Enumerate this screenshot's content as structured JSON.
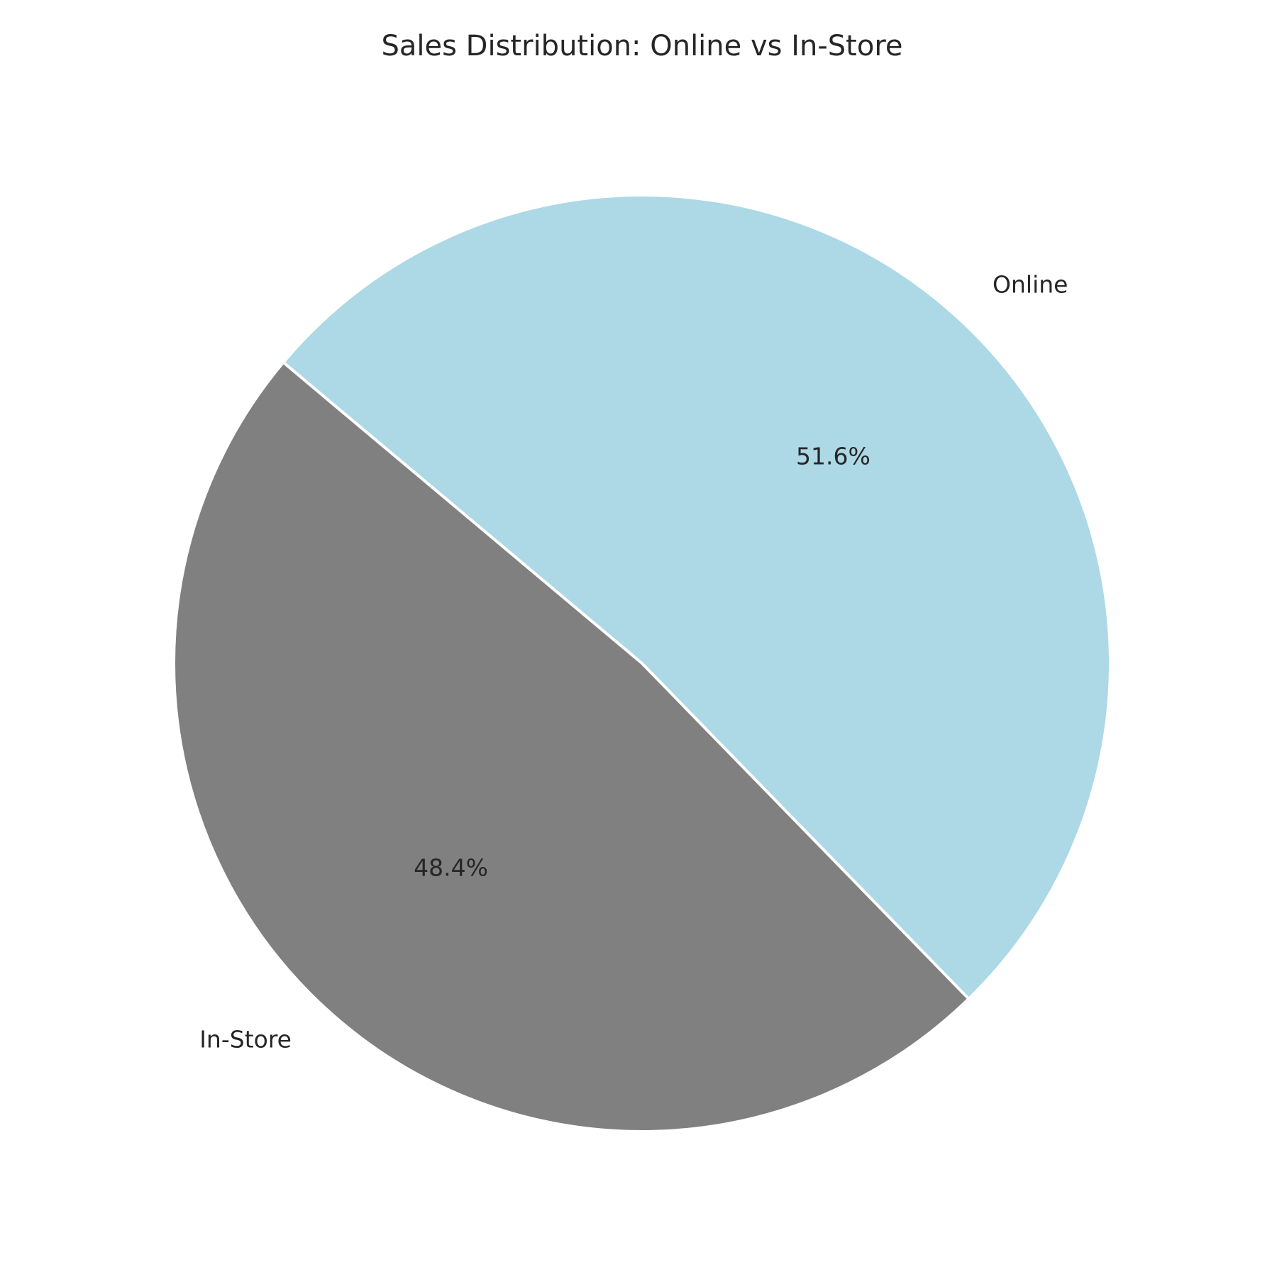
{
  "chart_data": {
    "type": "pie",
    "title": "Sales Distribution: Online vs In-Store",
    "start_angle_deg": 140,
    "direction": "counterclockwise",
    "slices": [
      {
        "label": "In-Store",
        "value": 48.4,
        "pct_text": "48.4%",
        "color": "#808080"
      },
      {
        "label": "Online",
        "value": 51.6,
        "pct_text": "51.6%",
        "color": "#add8e6"
      }
    ],
    "edge_color": "#ffffff"
  }
}
